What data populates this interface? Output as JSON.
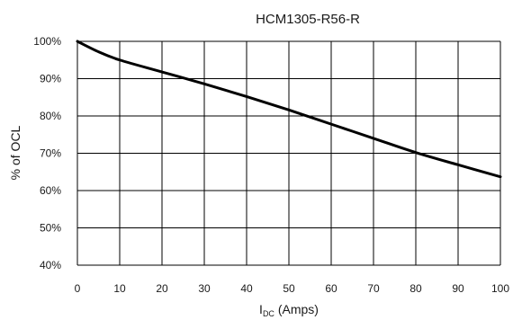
{
  "chart_data": {
    "type": "line",
    "title": "HCM1305-R56-R",
    "xlabel": "I",
    "xlabel_subscript": "DC",
    "xlabel_suffix": " (Amps)",
    "ylabel": "% of OCL",
    "xlim": [
      0,
      100
    ],
    "ylim": [
      40,
      100
    ],
    "x_ticks": [
      0,
      10,
      20,
      30,
      40,
      50,
      60,
      70,
      80,
      90,
      100
    ],
    "x_tick_labels": [
      "0",
      "10",
      "20",
      "30",
      "40",
      "50",
      "60",
      "70",
      "80",
      "90",
      "100"
    ],
    "y_ticks": [
      100,
      90,
      80,
      70,
      60,
      50,
      40
    ],
    "y_tick_labels": [
      "100%",
      "90%",
      "80%",
      "70%",
      "60%",
      "50%",
      "40%"
    ],
    "grid": true,
    "legend": "none",
    "series": [
      {
        "x": [
          0,
          5,
          10,
          20,
          30,
          40,
          50,
          60,
          70,
          80,
          90,
          100
        ],
        "y": [
          100,
          97.2,
          95,
          91.8,
          88.6,
          85.2,
          81.6,
          77.8,
          74,
          70.2,
          66.9,
          63.7
        ],
        "color": "#000000"
      }
    ]
  }
}
